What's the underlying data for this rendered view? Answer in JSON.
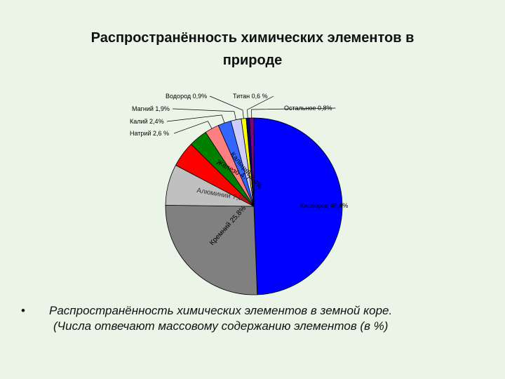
{
  "title": {
    "line1": "Распространённость химических элементов в",
    "line2": "природе"
  },
  "caption": {
    "bullet": "•",
    "line1": "Распространённость химических элементов в земной коре.",
    "line2": "(Числа отвечают массовому содержанию элементов (в %)"
  },
  "chart_data": {
    "type": "pie",
    "title": "",
    "start_angle": "top",
    "direction": "clockwise",
    "slices": [
      {
        "label": "Кислород 49,4%",
        "value": 49.4,
        "color": "#0000ff",
        "label_pos": "inside"
      },
      {
        "label": "Кремний 25,8%",
        "value": 25.8,
        "color": "#808080",
        "label_pos": "inside"
      },
      {
        "label": "Алюминий 7,5%",
        "value": 7.5,
        "color": "#c0c0c0",
        "label_pos": "inside"
      },
      {
        "label": "Железо 4,7",
        "value": 4.7,
        "color": "#ff0000",
        "label_pos": "inside"
      },
      {
        "label": "Кальций 3,4%",
        "value": 3.4,
        "color": "#008000",
        "label_pos": "inside"
      },
      {
        "label": "Натрий 2,6 %",
        "value": 2.6,
        "color": "#ff8080",
        "label_pos": "outside"
      },
      {
        "label": "Калий 2,4%",
        "value": 2.4,
        "color": "#3366ff",
        "label_pos": "outside"
      },
      {
        "label": "Магний 1,9%",
        "value": 1.9,
        "color": "#ccccff",
        "label_pos": "outside"
      },
      {
        "label": "Водород 0,9%",
        "value": 0.9,
        "color": "#ffff00",
        "label_pos": "outside"
      },
      {
        "label": "Титан 0,6 %",
        "value": 0.6,
        "color": "#000080",
        "label_pos": "outside"
      },
      {
        "label": "Остальное 0,8%",
        "value": 0.8,
        "color": "#800080",
        "label_pos": "outside"
      }
    ]
  }
}
